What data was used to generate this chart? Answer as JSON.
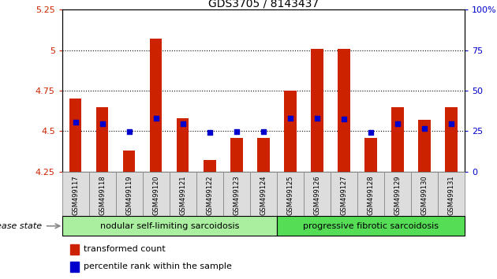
{
  "title": "GDS3705 / 8143437",
  "samples": [
    "GSM499117",
    "GSM499118",
    "GSM499119",
    "GSM499120",
    "GSM499121",
    "GSM499122",
    "GSM499123",
    "GSM499124",
    "GSM499125",
    "GSM499126",
    "GSM499127",
    "GSM499128",
    "GSM499129",
    "GSM499130",
    "GSM499131"
  ],
  "red_values": [
    4.7,
    4.65,
    4.38,
    5.07,
    4.58,
    4.32,
    4.46,
    4.46,
    4.75,
    5.01,
    5.01,
    4.46,
    4.65,
    4.57,
    4.65
  ],
  "blue_values": [
    4.555,
    4.548,
    4.499,
    4.582,
    4.548,
    4.492,
    4.499,
    4.499,
    4.582,
    4.582,
    4.574,
    4.492,
    4.548,
    4.517,
    4.548
  ],
  "ylim_min": 4.25,
  "ylim_max": 5.25,
  "yticks": [
    4.25,
    4.5,
    4.75,
    5.0,
    5.25
  ],
  "ytick_labels": [
    "4.25",
    "4.5",
    "4.75",
    "5",
    "5.25"
  ],
  "y2ticks": [
    0,
    25,
    50,
    75,
    100
  ],
  "y2tick_labels": [
    "0",
    "25",
    "50",
    "75",
    "100%"
  ],
  "hlines": [
    4.5,
    4.75,
    5.0
  ],
  "bar_bottom": 4.25,
  "bar_color": "#cc2200",
  "blue_color": "#0000cc",
  "group1_label": "nodular self-limiting sarcoidosis",
  "group2_label": "progressive fibrotic sarcoidosis",
  "group1_count": 8,
  "group2_count": 7,
  "disease_state_label": "disease state",
  "legend1": "transformed count",
  "legend2": "percentile rank within the sample",
  "group_color1": "#aaeea0",
  "group_color2": "#55dd55",
  "cell_color": "#dddddd",
  "cell_border": "#888888"
}
